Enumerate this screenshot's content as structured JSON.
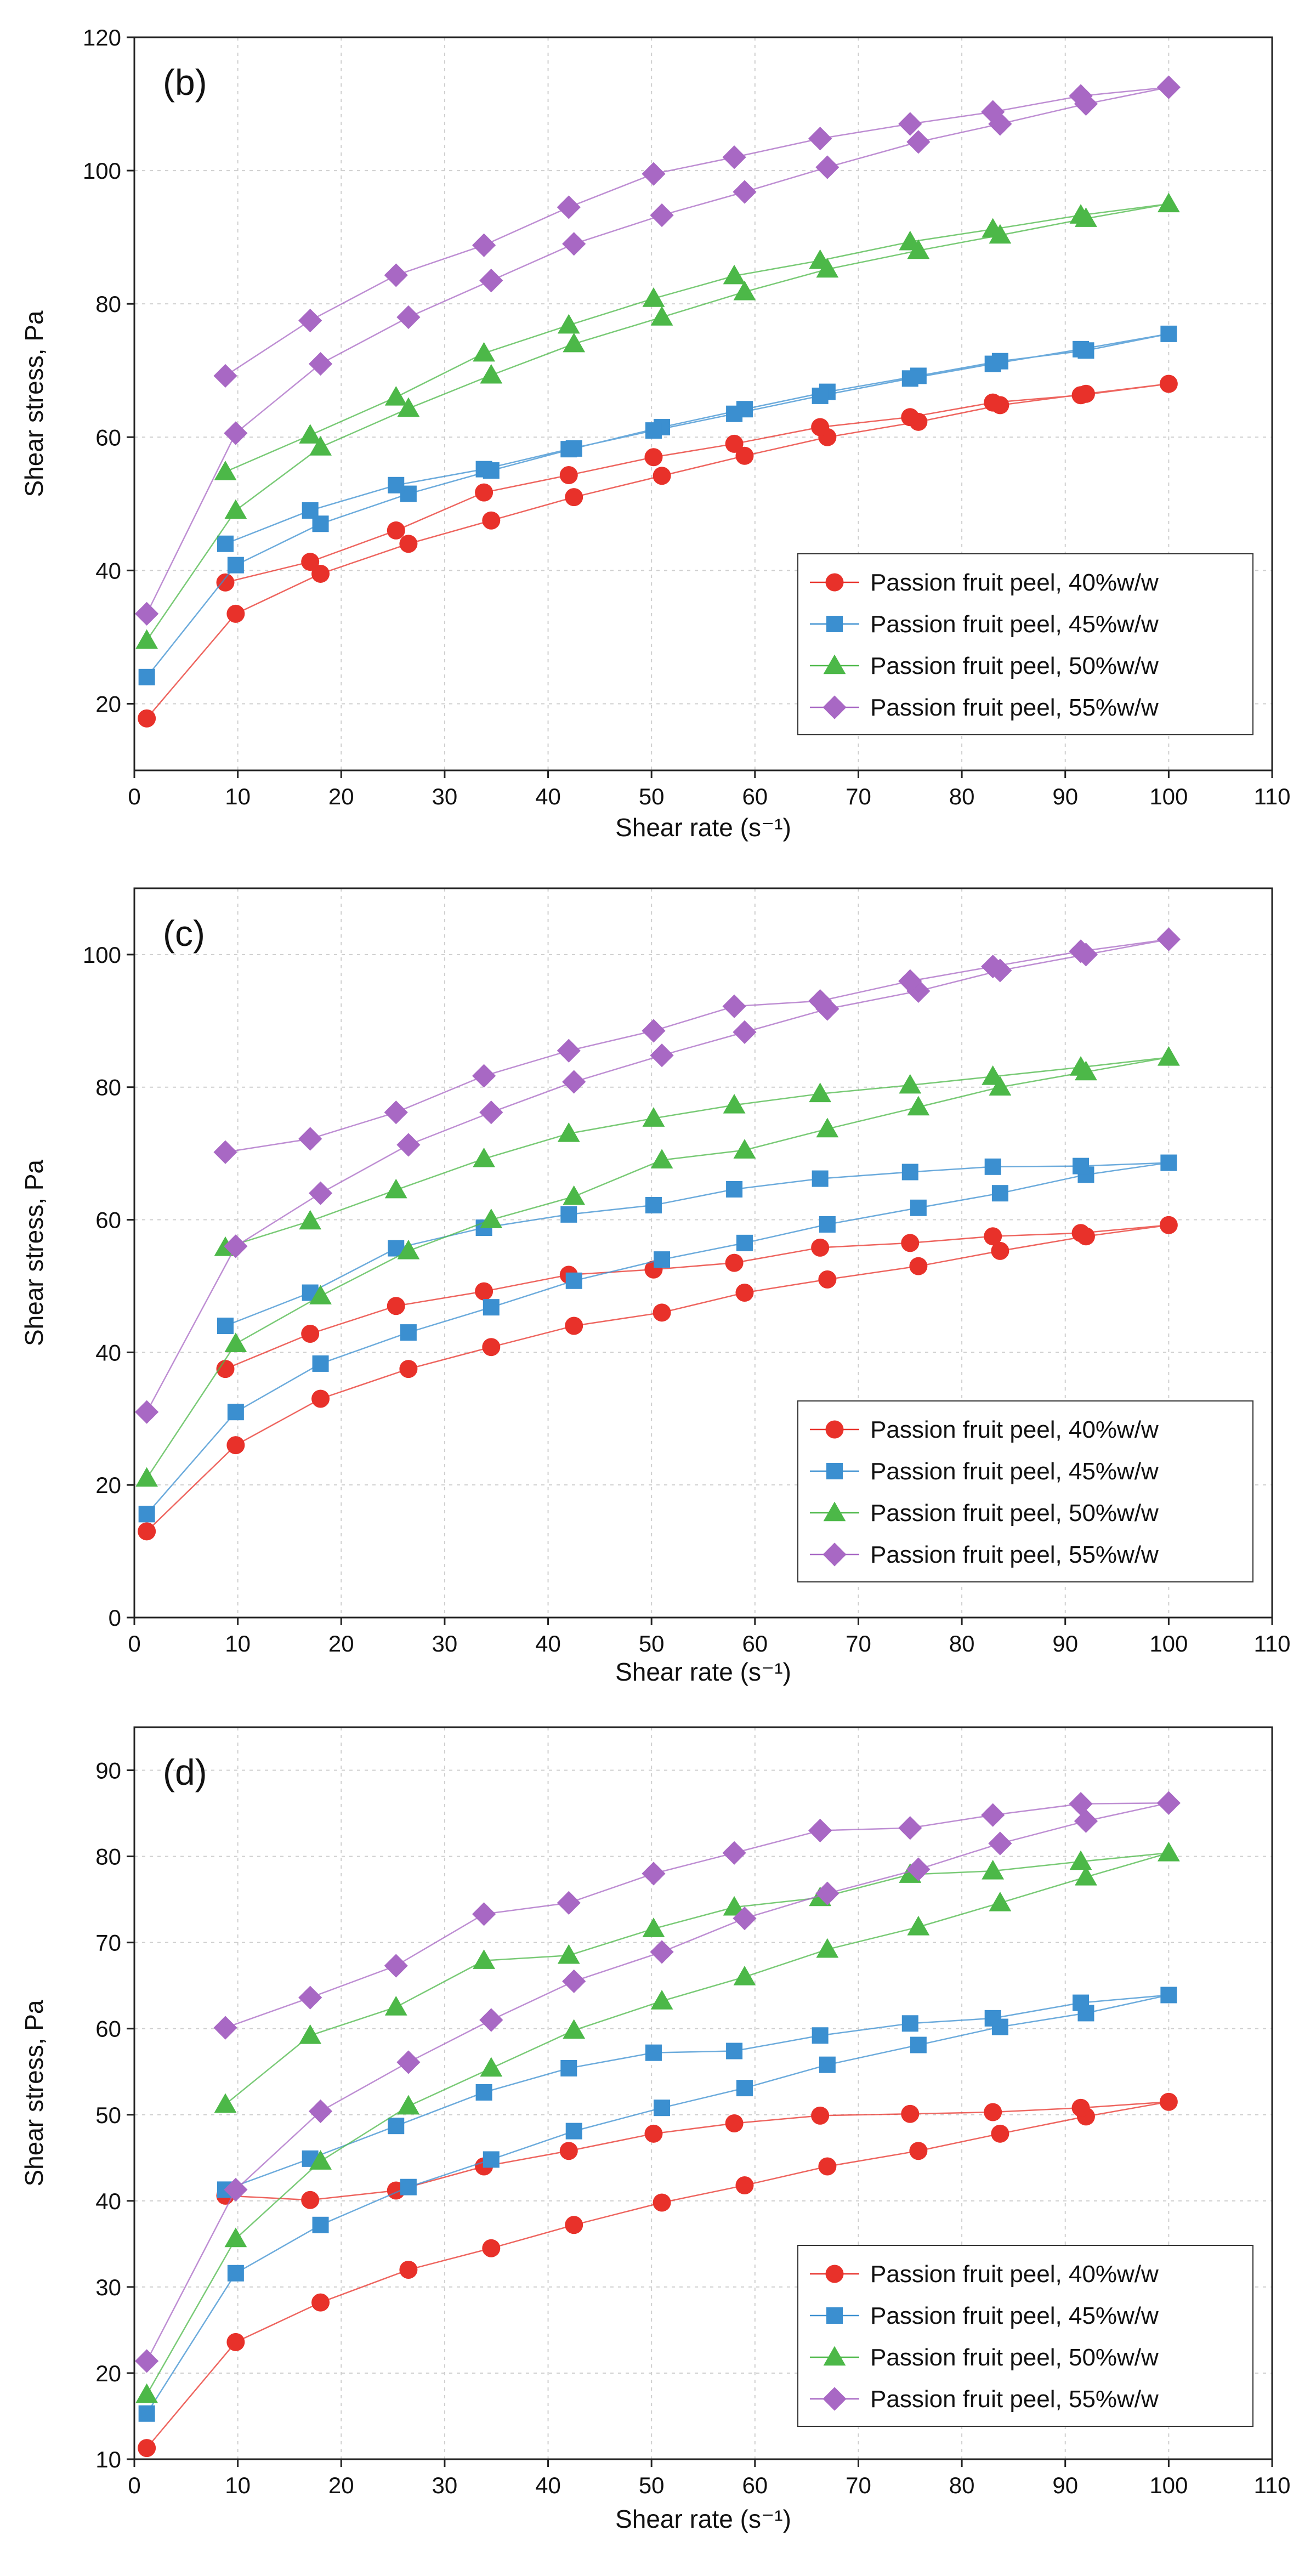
{
  "chart_data": [
    {
      "type": "line",
      "panel_label": "(b)",
      "xlabel": "Shear rate",
      "xlabel_unit": "(s⁻¹)",
      "ylabel": "Shear stress, Pa",
      "xlim": [
        0,
        110
      ],
      "ylim": [
        10,
        120
      ],
      "xticks": [
        0,
        10,
        20,
        30,
        40,
        50,
        60,
        70,
        80,
        90,
        100,
        110
      ],
      "yticks": [
        20,
        40,
        60,
        80,
        100,
        120
      ],
      "legend_position": "lower-right",
      "series": [
        {
          "name": "Passion fruit peel, 40%w/w",
          "color": "#e8312a",
          "marker": "circle",
          "x": [
            1.2,
            9.8,
            18,
            26.5,
            34.5,
            42.5,
            51,
            59,
            67,
            75.8,
            83.7,
            92,
            100,
            91.5,
            83,
            75,
            66.3,
            58,
            50.2,
            42,
            33.8,
            25.3,
            17,
            8.8
          ],
          "y": [
            17.8,
            33.5,
            39.5,
            44,
            47.5,
            51,
            54.2,
            57.2,
            60,
            62.3,
            64.8,
            66.5,
            68,
            66.3,
            65.2,
            63,
            61.5,
            59,
            57,
            54.3,
            51.7,
            46,
            41.3,
            38.2
          ]
        },
        {
          "name": "Passion fruit peel, 45%w/w",
          "color": "#3b8fd0",
          "marker": "square",
          "x": [
            1.2,
            9.8,
            18,
            26.5,
            34.5,
            42.5,
            51,
            59,
            67,
            75.8,
            83.7,
            92,
            100,
            91.5,
            83,
            75,
            66.3,
            58,
            50.2,
            42,
            33.8,
            25.3,
            17,
            8.8
          ],
          "y": [
            24,
            40.8,
            47,
            51.5,
            55,
            58.3,
            61.5,
            64.2,
            66.8,
            69.2,
            71.4,
            73,
            75.5,
            73.2,
            71,
            68.8,
            66.2,
            63.5,
            61,
            58.2,
            55.2,
            52.8,
            49,
            44
          ]
        },
        {
          "name": "Passion fruit peel, 50%w/w",
          "color": "#4cb848",
          "marker": "triangle",
          "x": [
            1.2,
            9.8,
            18,
            26.5,
            34.5,
            42.5,
            51,
            59,
            67,
            75.8,
            83.7,
            92,
            100,
            91.5,
            83,
            75,
            66.3,
            58,
            50.2,
            42,
            33.8,
            25.3,
            17,
            8.8
          ],
          "y": [
            29.5,
            49,
            58.5,
            64.3,
            69.3,
            74,
            78,
            81.8,
            85.2,
            88,
            90.3,
            92.8,
            95,
            93.3,
            91.2,
            89.3,
            86.5,
            84.2,
            80.8,
            76.8,
            72.6,
            66,
            60.3,
            54.8
          ]
        },
        {
          "name": "Passion fruit peel, 55%w/w",
          "color": "#a868c4",
          "marker": "diamond",
          "x": [
            1.2,
            9.8,
            18,
            26.5,
            34.5,
            42.5,
            51,
            59,
            67,
            75.8,
            83.7,
            92,
            100,
            91.5,
            83,
            75,
            66.3,
            58,
            50.2,
            42,
            33.8,
            25.3,
            17,
            8.8
          ],
          "y": [
            33.5,
            60.6,
            71,
            78,
            83.5,
            89,
            93.3,
            96.8,
            100.5,
            104.3,
            107,
            110,
            112.5,
            111.2,
            108.8,
            107,
            104.8,
            102,
            99.5,
            94.5,
            88.8,
            84.3,
            77.5,
            69.2
          ]
        }
      ]
    },
    {
      "type": "line",
      "panel_label": "(c)",
      "xlabel": "Shear rate",
      "xlabel_unit": "(s⁻¹)",
      "ylabel": "Shear stress, Pa",
      "xlim": [
        0,
        110
      ],
      "ylim": [
        0,
        110
      ],
      "xticks": [
        0,
        10,
        20,
        30,
        40,
        50,
        60,
        70,
        80,
        90,
        100,
        110
      ],
      "yticks": [
        0,
        20,
        40,
        60,
        80,
        100
      ],
      "legend_position": "lower-right",
      "series": [
        {
          "name": "Passion fruit peel, 40%w/w",
          "color": "#e8312a",
          "marker": "circle",
          "x": [
            1.2,
            9.8,
            18,
            26.5,
            34.5,
            42.5,
            51,
            59,
            67,
            75.8,
            83.7,
            92,
            100,
            91.5,
            83,
            75,
            66.3,
            58,
            50.2,
            42,
            33.8,
            25.3,
            17,
            8.8
          ],
          "y": [
            13,
            26,
            33,
            37.5,
            40.8,
            44,
            46,
            49,
            51,
            53,
            55.3,
            57.5,
            59.2,
            58,
            57.5,
            56.5,
            55.8,
            53.5,
            52.5,
            51.7,
            49.2,
            47,
            42.8,
            37.5
          ]
        },
        {
          "name": "Passion fruit peel, 45%w/w",
          "color": "#3b8fd0",
          "marker": "square",
          "x": [
            1.2,
            9.8,
            18,
            26.5,
            34.5,
            42.5,
            51,
            59,
            67,
            75.8,
            83.7,
            92,
            100,
            91.5,
            83,
            75,
            66.3,
            58,
            50.2,
            42,
            33.8,
            25.3,
            17,
            8.8
          ],
          "y": [
            15.6,
            31,
            38.3,
            43,
            46.8,
            50.8,
            54,
            56.5,
            59.3,
            61.8,
            64,
            66.8,
            68.6,
            68.1,
            68,
            67.2,
            66.2,
            64.6,
            62.2,
            60.8,
            58.8,
            55.7,
            49,
            44
          ]
        },
        {
          "name": "Passion fruit peel, 50%w/w",
          "color": "#4cb848",
          "marker": "triangle",
          "x": [
            1.2,
            9.8,
            18,
            26.5,
            34.5,
            42.5,
            51,
            59,
            67,
            75.8,
            83.7,
            92,
            100,
            91.5,
            83,
            75,
            66.3,
            58,
            50.2,
            42,
            33.8,
            25.3,
            17,
            8.8
          ],
          "y": [
            21,
            41.3,
            48.5,
            55.3,
            60,
            63.5,
            69,
            70.5,
            73.7,
            77,
            80,
            82.3,
            84.5,
            83,
            81.6,
            80.3,
            79,
            77.3,
            75.3,
            73,
            69.2,
            64.5,
            59.8,
            55.8
          ]
        },
        {
          "name": "Passion fruit peel, 55%w/w",
          "color": "#a868c4",
          "marker": "diamond",
          "x": [
            1.2,
            9.8,
            18,
            26.5,
            34.5,
            42.5,
            51,
            59,
            67,
            75.8,
            83.7,
            92,
            100,
            91.5,
            83,
            75,
            66.3,
            58,
            50.2,
            42,
            33.8,
            25.3,
            17,
            8.8
          ],
          "y": [
            31,
            56,
            64,
            71.3,
            76.2,
            80.8,
            84.8,
            88.3,
            91.8,
            94.5,
            97.6,
            100,
            102.3,
            100.5,
            98.2,
            96,
            93,
            92.2,
            88.5,
            85.5,
            81.7,
            76.2,
            72.2,
            70.2
          ]
        }
      ]
    },
    {
      "type": "line",
      "panel_label": "(d)",
      "xlabel": "Shear rate",
      "xlabel_unit": "(s⁻¹)",
      "ylabel": "Shear stress, Pa",
      "xlim": [
        0,
        110
      ],
      "ylim": [
        10,
        95
      ],
      "xticks": [
        0,
        10,
        20,
        30,
        40,
        50,
        60,
        70,
        80,
        90,
        100,
        110
      ],
      "yticks": [
        10,
        20,
        30,
        40,
        50,
        60,
        70,
        80,
        90
      ],
      "legend_position": "lower-right",
      "series": [
        {
          "name": "Passion fruit peel, 40%w/w",
          "color": "#e8312a",
          "marker": "circle",
          "x": [
            1.2,
            9.8,
            18,
            26.5,
            34.5,
            42.5,
            51,
            59,
            67,
            75.8,
            83.7,
            92,
            100,
            91.5,
            83,
            75,
            66.3,
            58,
            50.2,
            42,
            33.8,
            25.3,
            17,
            8.8
          ],
          "y": [
            11.3,
            23.6,
            28.2,
            32,
            34.5,
            37.2,
            39.8,
            41.8,
            44,
            45.8,
            47.8,
            49.8,
            51.5,
            50.8,
            50.3,
            50.1,
            49.9,
            49,
            47.8,
            45.8,
            44,
            41.2,
            40.1,
            40.6
          ]
        },
        {
          "name": "Passion fruit peel, 45%w/w",
          "color": "#3b8fd0",
          "marker": "square",
          "x": [
            1.2,
            9.8,
            18,
            26.5,
            34.5,
            42.5,
            51,
            59,
            67,
            75.8,
            83.7,
            92,
            100,
            91.5,
            83,
            75,
            66.3,
            58,
            50.2,
            42,
            33.8,
            25.3,
            17,
            8.8
          ],
          "y": [
            15.3,
            31.6,
            37.2,
            41.6,
            44.8,
            48.1,
            50.8,
            53.1,
            55.8,
            58.1,
            60.2,
            61.8,
            63.9,
            63,
            61.2,
            60.6,
            59.2,
            57.4,
            57.2,
            55.4,
            52.6,
            48.7,
            44.9,
            41.3
          ]
        },
        {
          "name": "Passion fruit peel, 50%w/w",
          "color": "#4cb848",
          "marker": "triangle",
          "x": [
            1.2,
            9.8,
            18,
            26.5,
            34.5,
            42.5,
            51,
            59,
            67,
            75.8,
            83.7,
            92,
            100,
            91.5,
            83,
            75,
            66.3,
            58,
            50.2,
            42,
            33.8,
            25.3,
            17,
            8.8
          ],
          "y": [
            17.5,
            35.6,
            44.6,
            51,
            55.4,
            59.8,
            63.2,
            66,
            69.2,
            71.8,
            74.6,
            77.6,
            80.4,
            79.4,
            78.3,
            77.9,
            75.2,
            74.1,
            71.6,
            68.5,
            67.9,
            62.5,
            59.2,
            51.2
          ]
        },
        {
          "name": "Passion fruit peel, 55%w/w",
          "color": "#a868c4",
          "marker": "diamond",
          "x": [
            1.2,
            9.8,
            18,
            26.5,
            34.5,
            42.5,
            51,
            59,
            67,
            75.8,
            83.7,
            92,
            100,
            91.5,
            83,
            75,
            66.3,
            58,
            50.2,
            42,
            33.8,
            25.3,
            17,
            8.8
          ],
          "y": [
            21.4,
            41.3,
            50.4,
            56.1,
            61,
            65.5,
            68.9,
            72.8,
            75.7,
            78.5,
            81.5,
            84.1,
            86.2,
            86.1,
            84.8,
            83.3,
            83,
            80.4,
            78,
            74.6,
            73.3,
            67.3,
            63.6,
            60.1
          ]
        }
      ]
    }
  ]
}
